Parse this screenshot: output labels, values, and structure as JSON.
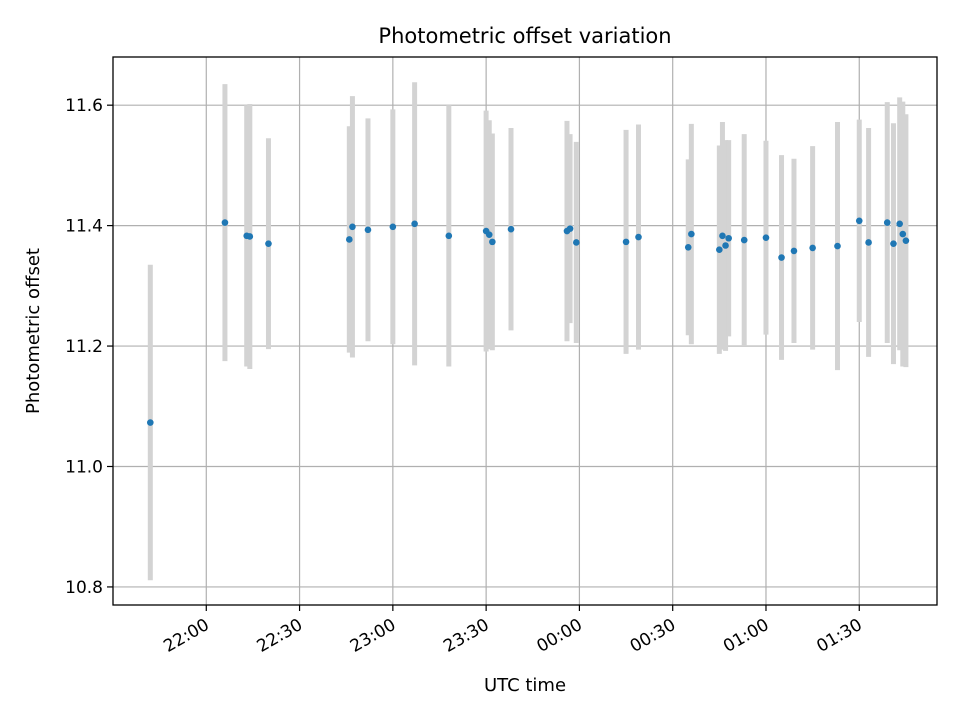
{
  "chart_data": {
    "type": "scatter",
    "title": "Photometric offset variation",
    "xlabel": "UTC time",
    "ylabel": "Photometric offset",
    "x_is_time": true,
    "xlim": [
      "21:30",
      "01:55"
    ],
    "ylim": [
      10.77,
      11.68
    ],
    "grid": true,
    "x_ticks": [
      "22:00",
      "22:30",
      "23:00",
      "23:30",
      "00:00",
      "00:30",
      "01:00",
      "01:30"
    ],
    "y_ticks": [
      10.8,
      11.0,
      11.2,
      11.4,
      11.6
    ],
    "y_tick_labels": [
      "10.8",
      "11.0",
      "11.2",
      "11.4",
      "11.6"
    ],
    "point_color": "#1f77b4",
    "errorbar_color": "#d3d3d3",
    "points": [
      {
        "t": "21:42",
        "y": 11.073,
        "err": 0.262
      },
      {
        "t": "22:06",
        "y": 11.405,
        "err": 0.23
      },
      {
        "t": "22:13",
        "y": 11.383,
        "err": 0.217
      },
      {
        "t": "22:14",
        "y": 11.382,
        "err": 0.22
      },
      {
        "t": "22:20",
        "y": 11.37,
        "err": 0.175
      },
      {
        "t": "22:46",
        "y": 11.377,
        "err": 0.188
      },
      {
        "t": "22:47",
        "y": 11.398,
        "err": 0.217
      },
      {
        "t": "22:52",
        "y": 11.393,
        "err": 0.185
      },
      {
        "t": "23:00",
        "y": 11.398,
        "err": 0.195
      },
      {
        "t": "23:07",
        "y": 11.403,
        "err": 0.235
      },
      {
        "t": "23:18",
        "y": 11.383,
        "err": 0.217
      },
      {
        "t": "23:30",
        "y": 11.391,
        "err": 0.2
      },
      {
        "t": "23:31",
        "y": 11.385,
        "err": 0.19
      },
      {
        "t": "23:32",
        "y": 11.373,
        "err": 0.18
      },
      {
        "t": "23:38",
        "y": 11.394,
        "err": 0.168
      },
      {
        "t": "23:56",
        "y": 11.391,
        "err": 0.183
      },
      {
        "t": "23:57",
        "y": 11.395,
        "err": 0.157
      },
      {
        "t": "23:59",
        "y": 11.372,
        "err": 0.167
      },
      {
        "t": "00:15",
        "y": 11.373,
        "err": 0.186
      },
      {
        "t": "00:19",
        "y": 11.381,
        "err": 0.187
      },
      {
        "t": "00:35",
        "y": 11.364,
        "err": 0.146
      },
      {
        "t": "00:36",
        "y": 11.386,
        "err": 0.183
      },
      {
        "t": "00:45",
        "y": 11.36,
        "err": 0.173
      },
      {
        "t": "00:46",
        "y": 11.383,
        "err": 0.189
      },
      {
        "t": "00:47",
        "y": 11.367,
        "err": 0.175
      },
      {
        "t": "00:48",
        "y": 11.379,
        "err": 0.163
      },
      {
        "t": "00:53",
        "y": 11.376,
        "err": 0.176
      },
      {
        "t": "01:00",
        "y": 11.38,
        "err": 0.161
      },
      {
        "t": "01:05",
        "y": 11.347,
        "err": 0.17
      },
      {
        "t": "01:09",
        "y": 11.358,
        "err": 0.153
      },
      {
        "t": "01:15",
        "y": 11.363,
        "err": 0.169
      },
      {
        "t": "01:23",
        "y": 11.366,
        "err": 0.206
      },
      {
        "t": "01:30",
        "y": 11.408,
        "err": 0.168
      },
      {
        "t": "01:33",
        "y": 11.372,
        "err": 0.19
      },
      {
        "t": "01:39",
        "y": 11.405,
        "err": 0.2
      },
      {
        "t": "01:41",
        "y": 11.37,
        "err": 0.2
      },
      {
        "t": "01:43",
        "y": 11.403,
        "err": 0.21
      },
      {
        "t": "01:44",
        "y": 11.386,
        "err": 0.22
      },
      {
        "t": "01:45",
        "y": 11.375,
        "err": 0.21
      }
    ]
  }
}
